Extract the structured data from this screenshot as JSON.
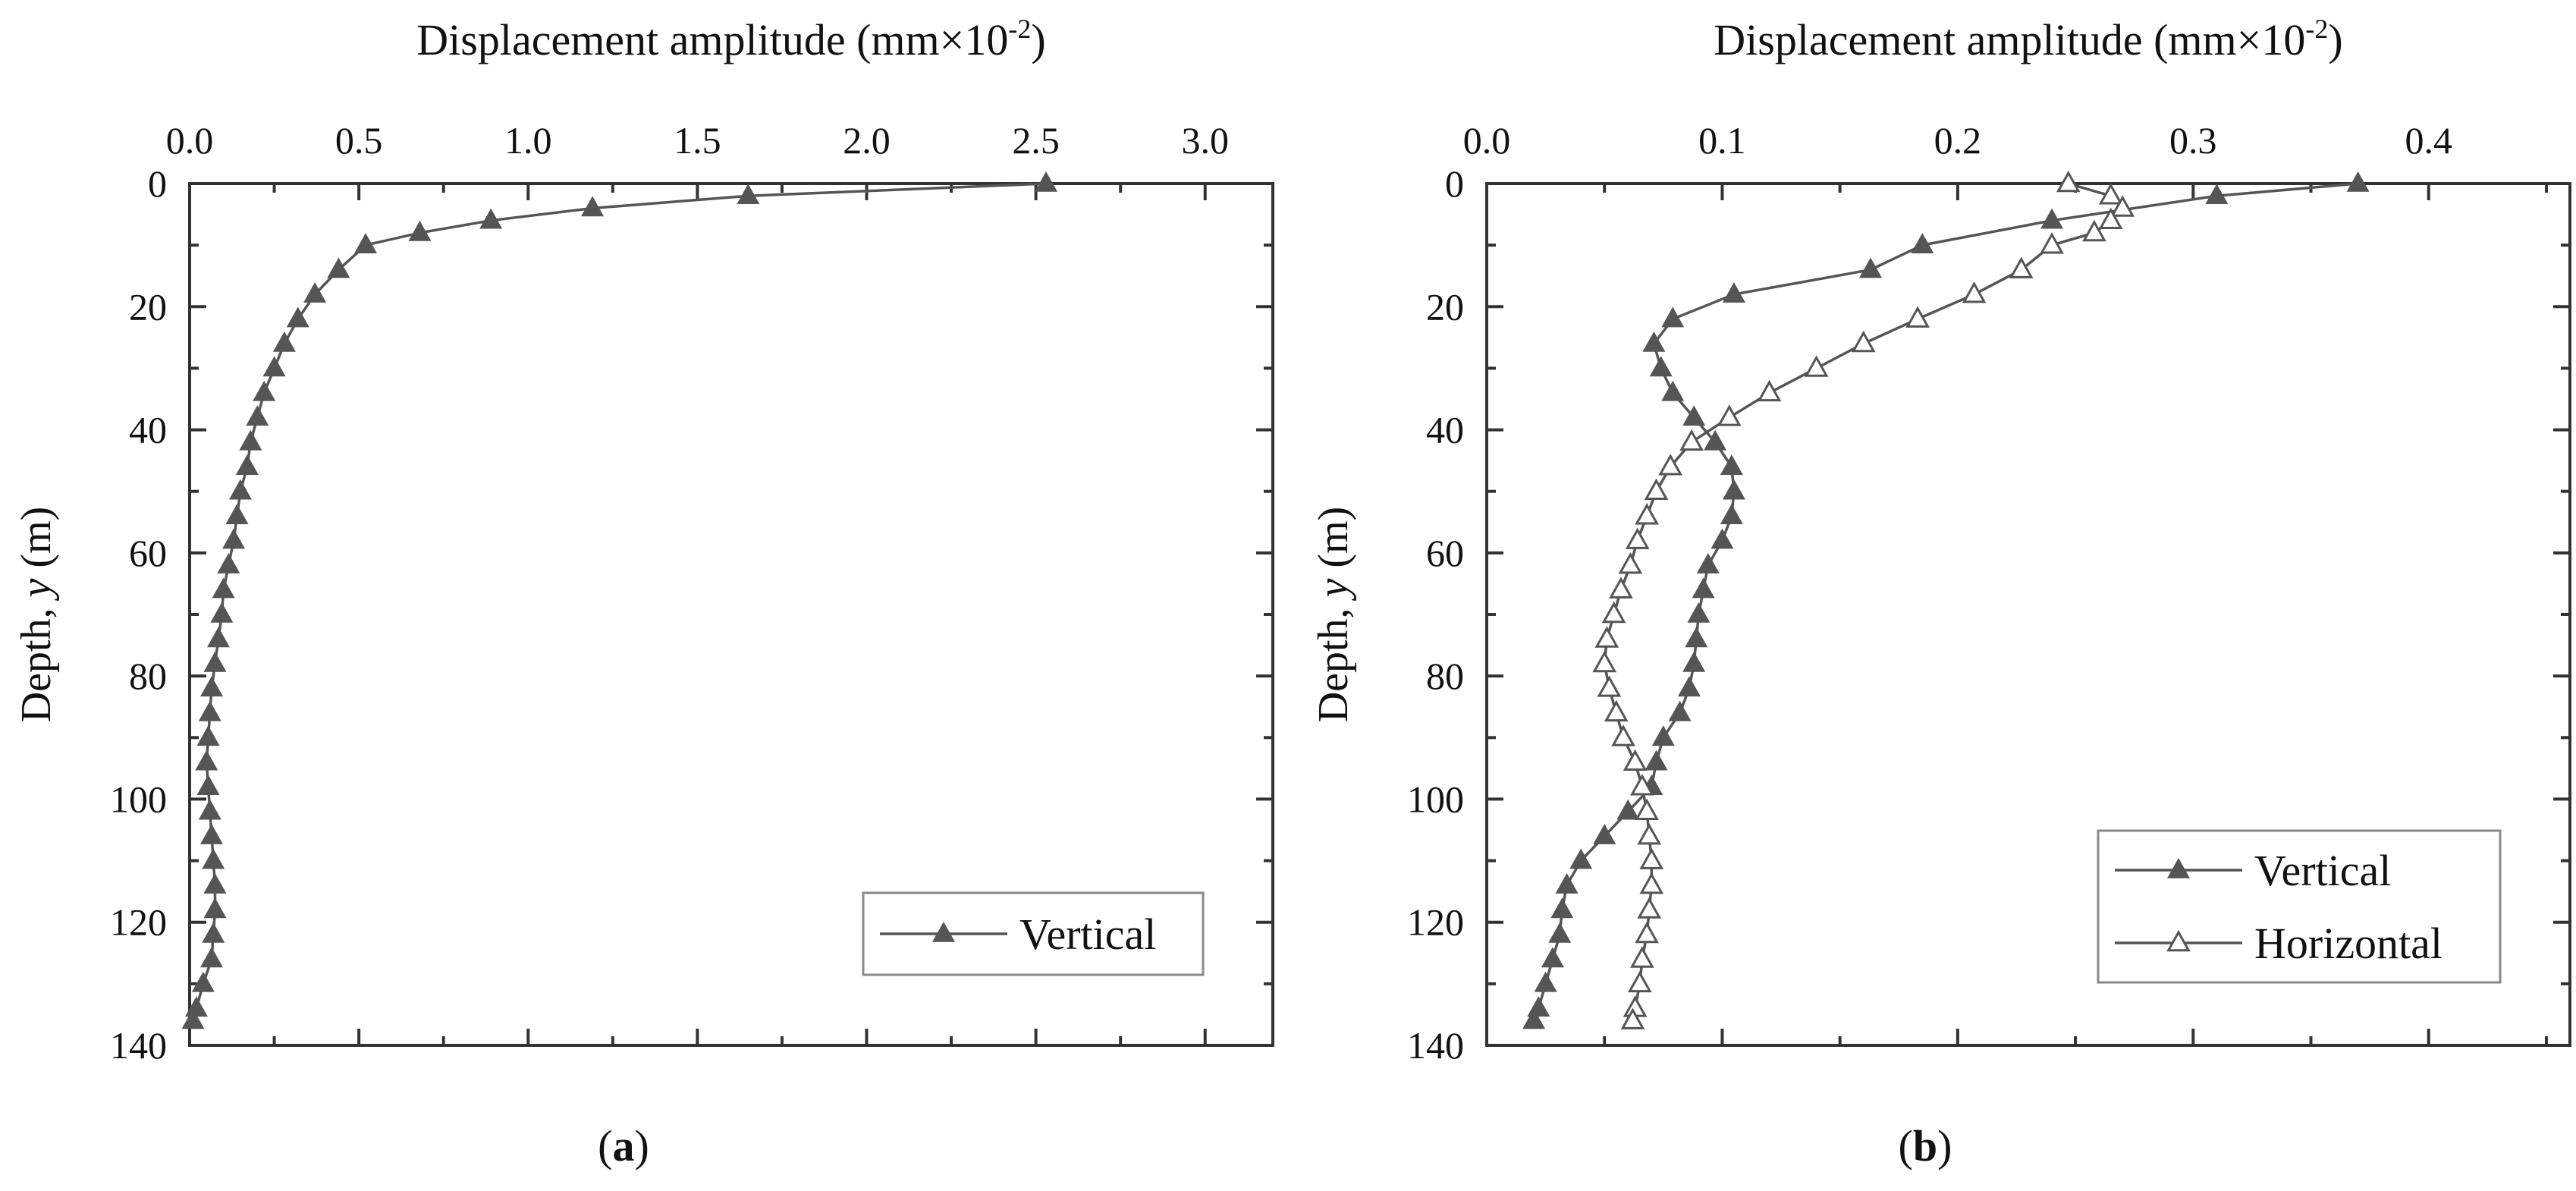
{
  "chart_data": [
    {
      "type": "line",
      "title": "Displacement amplitude (mm×10",
      "title_sup": "-2",
      "title_suffix": ")",
      "xlabel": "Displacement amplitude (mm×10^-2)",
      "ylabel": "Depth, y (m)",
      "ylabel_prefix": "Depth, ",
      "ylabel_var": "y",
      "ylabel_suffix": " (m)",
      "xlim": [
        0,
        3.2
      ],
      "ylim": [
        0,
        140
      ],
      "x_ticks": [
        0.0,
        0.5,
        1.0,
        1.5,
        2.0,
        2.5,
        3.0
      ],
      "x_tick_labels": [
        "0.0",
        "0.5",
        "1.0",
        "1.5",
        "2.0",
        "2.5",
        "3.0"
      ],
      "y_ticks": [
        0,
        20,
        40,
        60,
        80,
        100,
        120,
        140
      ],
      "y_tick_labels": [
        "0",
        "20",
        "40",
        "60",
        "80",
        "100",
        "120",
        "140"
      ],
      "panel_label": "a",
      "legend_position": "bottom-right",
      "series": [
        {
          "name": "Vertical",
          "marker": "filled-triangle",
          "y": [
            0,
            2,
            4,
            6,
            8,
            10,
            14,
            18,
            22,
            26,
            30,
            34,
            38,
            42,
            46,
            50,
            54,
            58,
            62,
            66,
            70,
            74,
            78,
            82,
            86,
            90,
            94,
            98,
            102,
            106,
            110,
            114,
            118,
            122,
            126,
            130,
            134,
            136
          ],
          "x": [
            2.53,
            1.65,
            1.19,
            0.89,
            0.68,
            0.52,
            0.44,
            0.37,
            0.32,
            0.28,
            0.25,
            0.22,
            0.2,
            0.18,
            0.17,
            0.15,
            0.14,
            0.13,
            0.115,
            0.1,
            0.095,
            0.085,
            0.075,
            0.065,
            0.06,
            0.055,
            0.05,
            0.055,
            0.06,
            0.065,
            0.07,
            0.075,
            0.075,
            0.07,
            0.065,
            0.04,
            0.02,
            0.01
          ]
        }
      ]
    },
    {
      "type": "line",
      "title": "Displacement amplitude (mm×10",
      "title_sup": "-2",
      "title_suffix": ")",
      "xlabel": "Displacement amplitude (mm×10^-2)",
      "ylabel": "Depth, y (m)",
      "ylabel_prefix": "Depth, ",
      "ylabel_var": "y",
      "ylabel_suffix": " (m)",
      "xlim": [
        0,
        0.46
      ],
      "ylim": [
        0,
        140
      ],
      "x_ticks": [
        0.0,
        0.1,
        0.2,
        0.3,
        0.4
      ],
      "x_tick_labels": [
        "0.0",
        "0.1",
        "0.2",
        "0.3",
        "0.4"
      ],
      "y_ticks": [
        0,
        20,
        40,
        60,
        80,
        100,
        120,
        140
      ],
      "y_tick_labels": [
        "0",
        "20",
        "40",
        "60",
        "80",
        "100",
        "120",
        "140"
      ],
      "panel_label": "b",
      "legend_position": "bottom-right",
      "series": [
        {
          "name": "Vertical",
          "marker": "filled-triangle",
          "y": [
            0,
            2,
            6,
            10,
            14,
            18,
            22,
            26,
            30,
            34,
            38,
            42,
            46,
            50,
            54,
            58,
            62,
            66,
            70,
            74,
            78,
            82,
            86,
            90,
            94,
            98,
            102,
            106,
            110,
            114,
            118,
            122,
            126,
            130,
            134,
            136
          ],
          "x": [
            0.37,
            0.31,
            0.24,
            0.185,
            0.163,
            0.105,
            0.079,
            0.071,
            0.074,
            0.079,
            0.088,
            0.097,
            0.104,
            0.105,
            0.104,
            0.1,
            0.094,
            0.092,
            0.09,
            0.089,
            0.088,
            0.086,
            0.082,
            0.075,
            0.072,
            0.07,
            0.06,
            0.05,
            0.04,
            0.034,
            0.032,
            0.031,
            0.028,
            0.025,
            0.022,
            0.02
          ]
        },
        {
          "name": "Horizontal",
          "marker": "open-triangle",
          "y": [
            0,
            2,
            4,
            6,
            8,
            10,
            14,
            18,
            22,
            26,
            30,
            34,
            38,
            42,
            46,
            50,
            54,
            58,
            62,
            66,
            70,
            74,
            78,
            82,
            86,
            90,
            94,
            98,
            102,
            106,
            110,
            114,
            118,
            122,
            126,
            130,
            134,
            136
          ],
          "x": [
            0.247,
            0.265,
            0.27,
            0.265,
            0.258,
            0.24,
            0.227,
            0.207,
            0.183,
            0.16,
            0.14,
            0.12,
            0.103,
            0.087,
            0.078,
            0.072,
            0.068,
            0.064,
            0.061,
            0.057,
            0.054,
            0.051,
            0.05,
            0.052,
            0.055,
            0.058,
            0.063,
            0.066,
            0.068,
            0.069,
            0.07,
            0.07,
            0.069,
            0.068,
            0.066,
            0.065,
            0.063,
            0.062
          ]
        }
      ]
    }
  ]
}
